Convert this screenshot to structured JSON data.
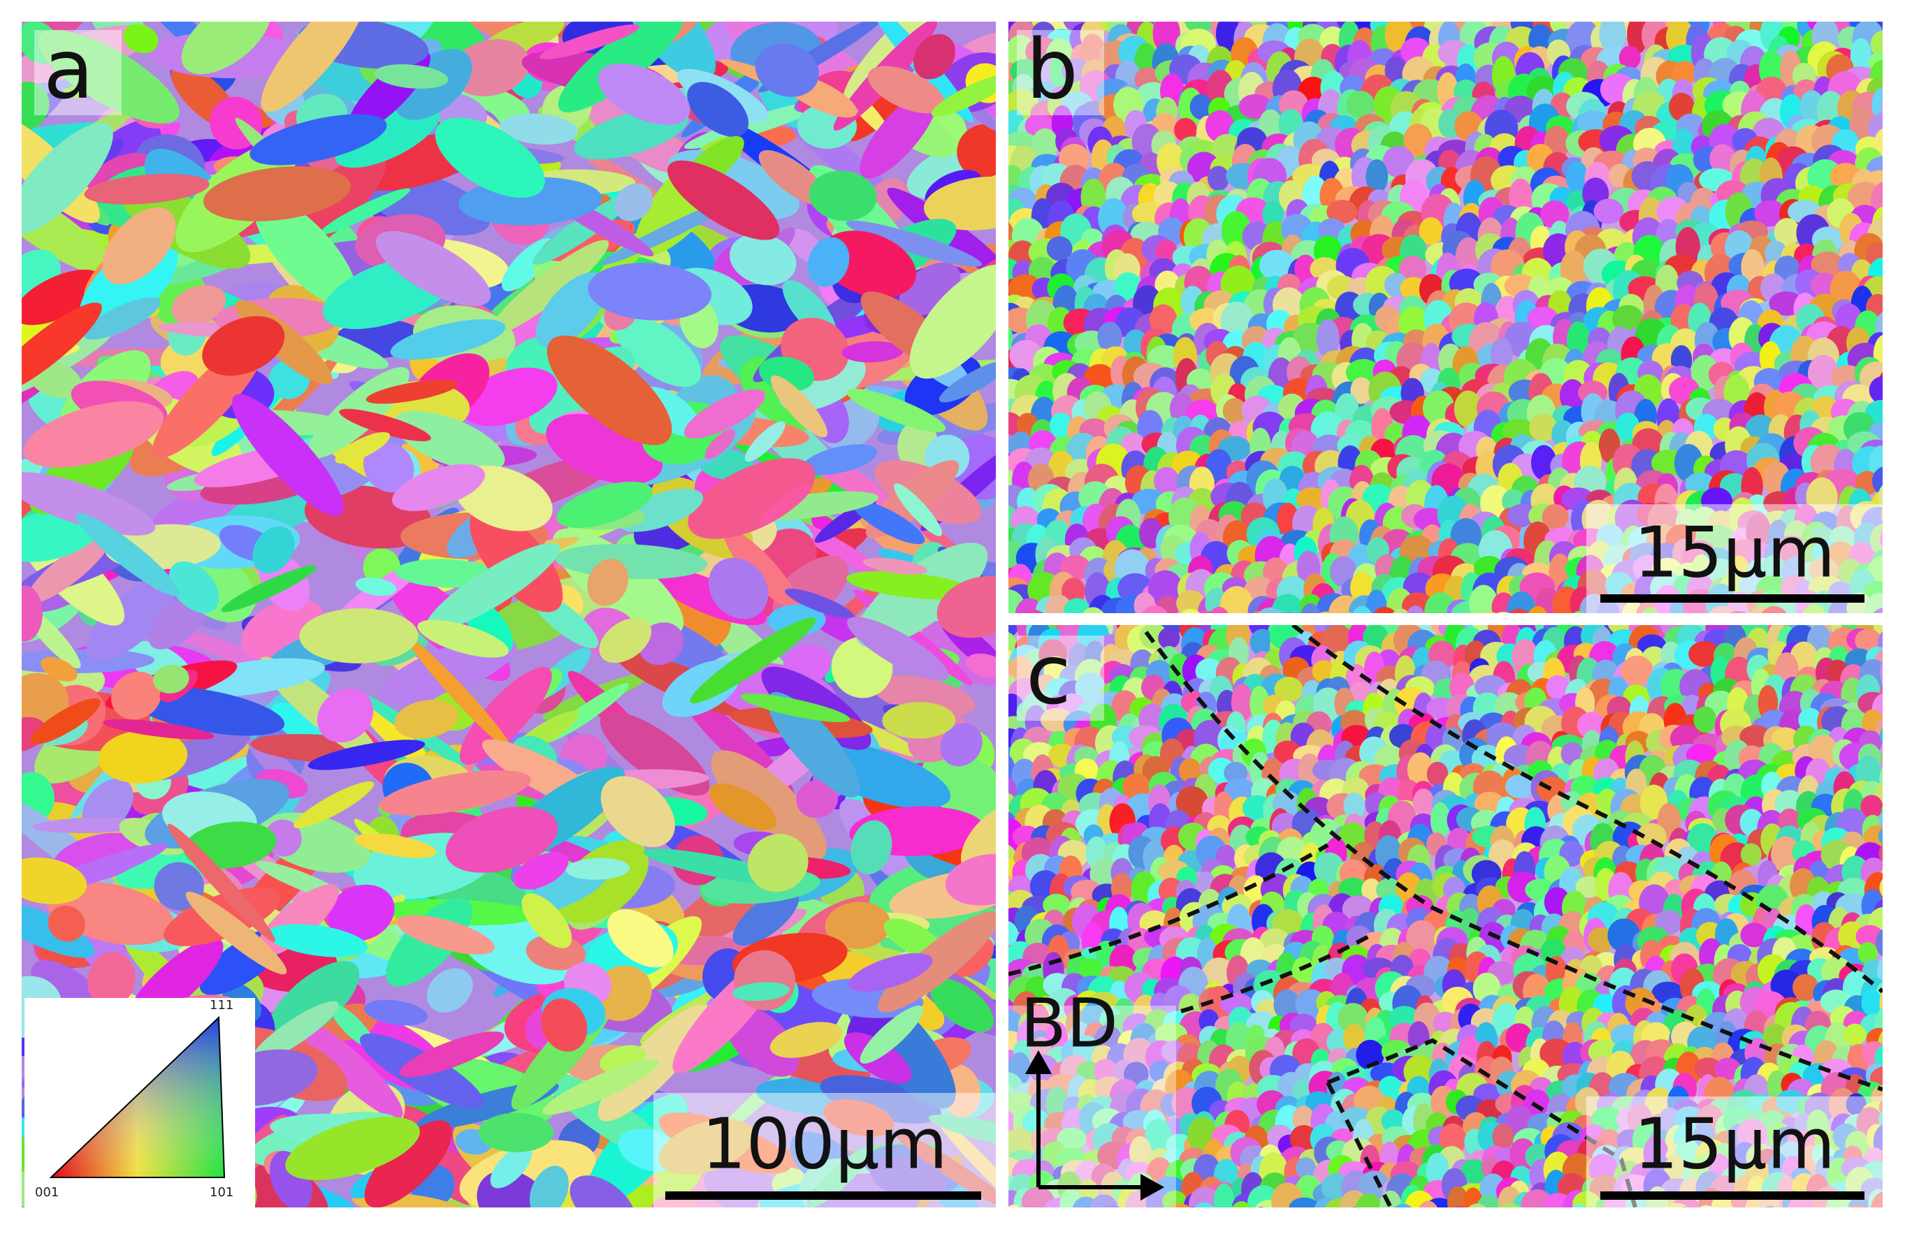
{
  "panels": [
    {
      "label": "a",
      "scale_bar": "100µm"
    },
    {
      "label": "b",
      "scale_bar": "15µm"
    },
    {
      "label": "c",
      "scale_bar": "15µm",
      "axis_label": "BD"
    }
  ],
  "color_key": {
    "corners": [
      "001",
      "101",
      "111"
    ]
  }
}
